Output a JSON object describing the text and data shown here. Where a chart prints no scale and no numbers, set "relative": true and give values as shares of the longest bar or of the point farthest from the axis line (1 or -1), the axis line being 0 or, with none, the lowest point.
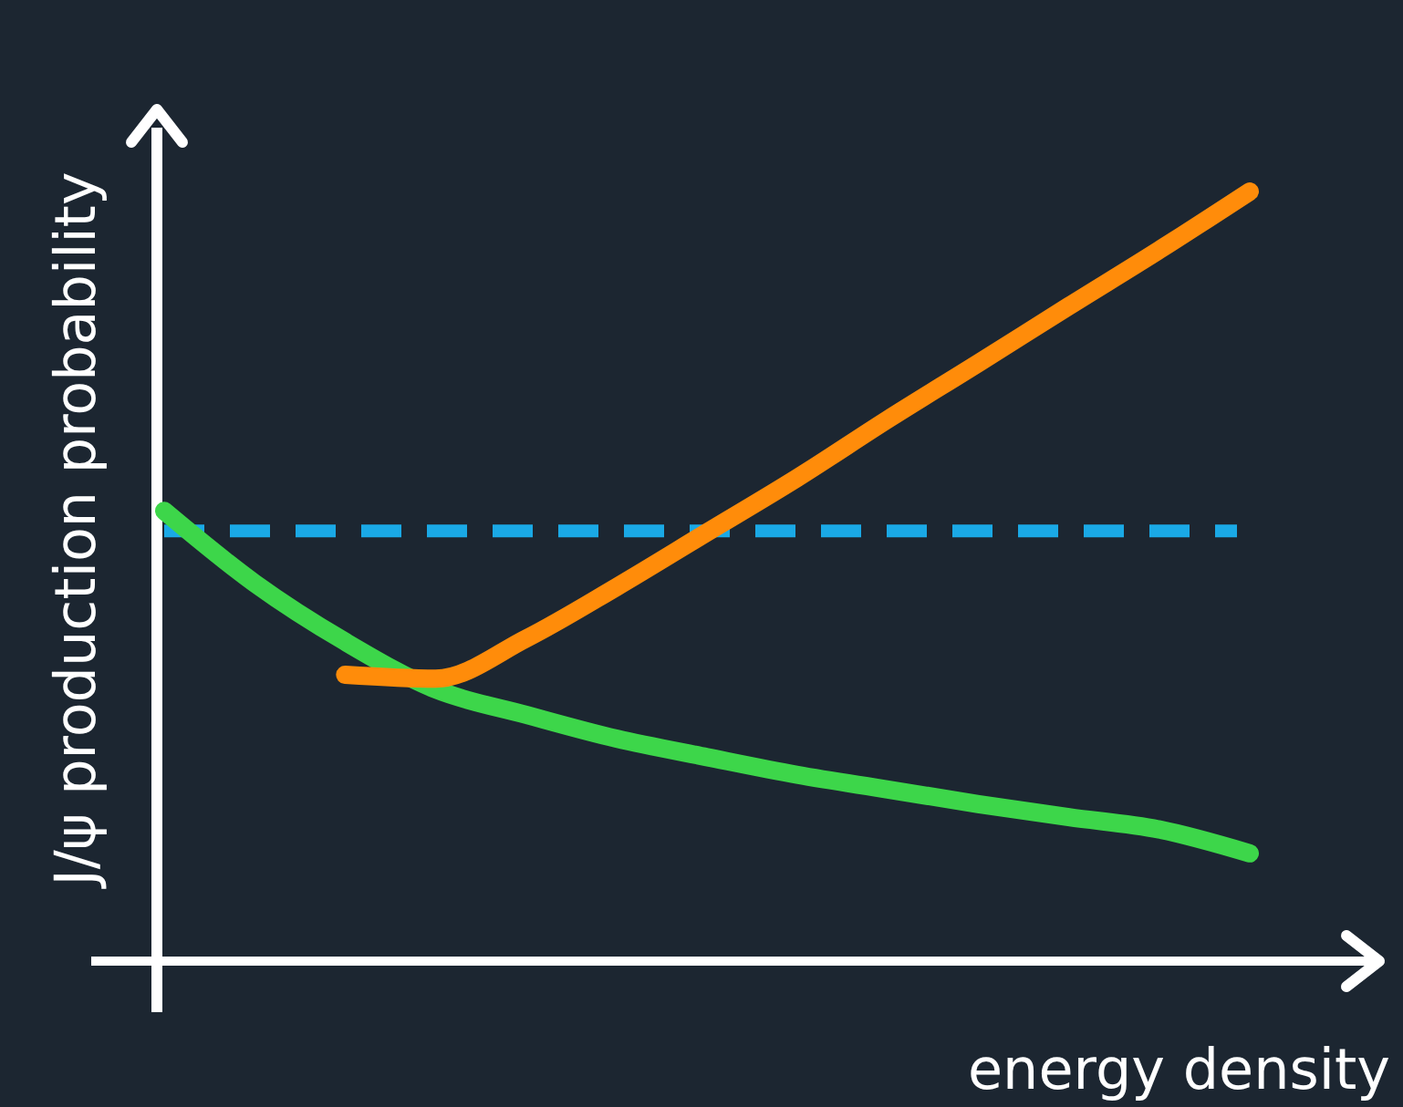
{
  "chart_data": {
    "type": "line",
    "relative": true,
    "xlabel": "energy density",
    "ylabel": "J/ψ production probability",
    "categories": [
      null,
      null,
      null,
      null,
      null,
      null,
      null,
      null,
      null,
      null,
      null,
      null,
      null
    ],
    "series": [
      {
        "color": "#3dd64a",
        "values": [
          0.585,
          0.491,
          0.415,
          0.353,
          0.32,
          0.289,
          0.265,
          0.242,
          0.223,
          0.204,
          0.187,
          0.171,
          0.14
        ]
      },
      {
        "color": "#ff8c0a",
        "values": [
          null,
          null,
          0.372,
          0.367,
          0.419,
          0.486,
          0.557,
          0.628,
          0.704,
          0.777,
          0.851,
          0.924,
          1
        ]
      }
    ],
    "ref_lines": [
      {
        "axis": "y",
        "value": 0.559,
        "color": "#1aa9e6",
        "line_style": "dashed"
      }
    ],
    "grid": false,
    "line_style": "solid",
    "marker": "none"
  }
}
